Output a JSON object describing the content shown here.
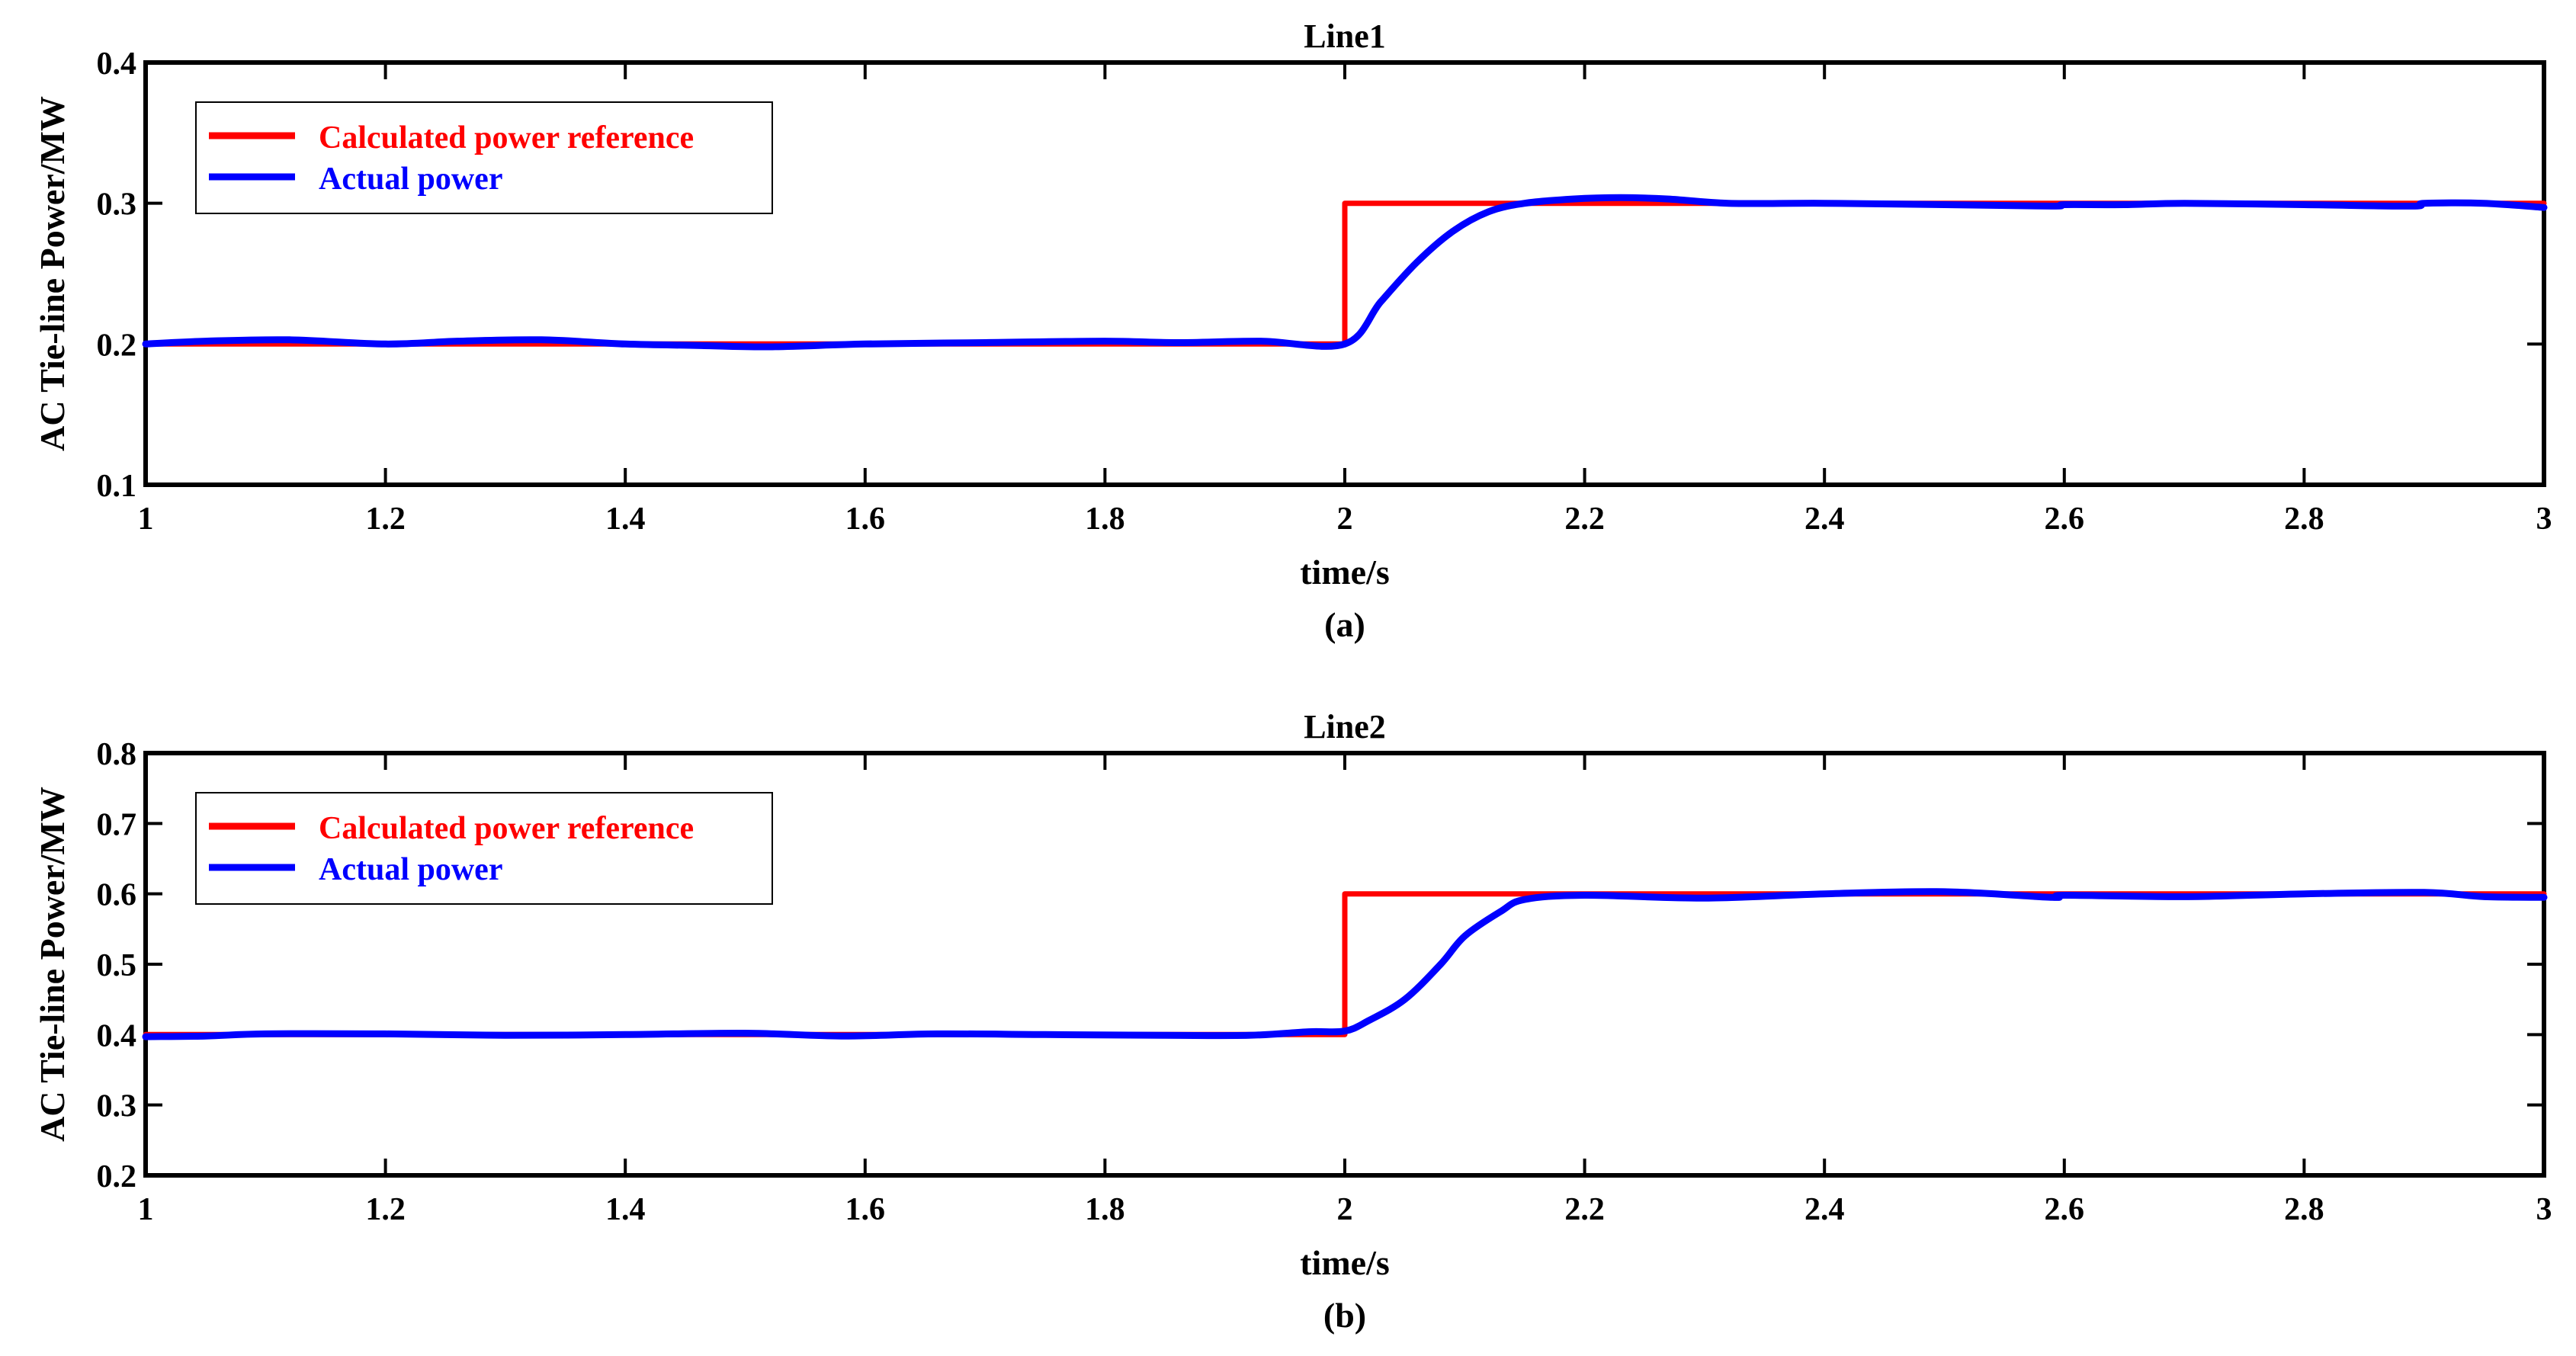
{
  "colors": {
    "reference": "#ff0000",
    "actual": "#0000ff",
    "axis": "#000000",
    "background": "#ffffff"
  },
  "chart_data": [
    {
      "type": "line",
      "title": "Line1",
      "xlabel": "time/s",
      "ylabel": "AC Tie-line Power/MW",
      "caption": "(a)",
      "xlim": [
        1,
        3
      ],
      "ylim": [
        0.1,
        0.4
      ],
      "xticks": [
        1,
        1.2,
        1.4,
        1.6,
        1.8,
        2,
        2.2,
        2.4,
        2.6,
        2.8,
        3
      ],
      "xtick_labels": [
        "1",
        "1.2",
        "1.4",
        "1.6",
        "1.8",
        "2",
        "2.2",
        "2.4",
        "2.6",
        "2.8",
        "3"
      ],
      "yticks": [
        0.1,
        0.2,
        0.3,
        0.4
      ],
      "ytick_labels": [
        "0.1",
        "0.2",
        "0.3",
        "0.4"
      ],
      "grid": false,
      "legend_position": "top-left",
      "series": [
        {
          "name": "Calculated power reference",
          "color": "#ff0000",
          "x": [
            1,
            2,
            2,
            3
          ],
          "y": [
            0.2,
            0.2,
            0.3,
            0.3
          ]
        },
        {
          "name": "Actual power",
          "color": "#0000ff",
          "x": [
            1,
            1.05,
            1.12,
            1.2,
            1.26,
            1.33,
            1.4,
            1.46,
            1.52,
            1.6,
            1.7,
            1.8,
            1.86,
            1.93,
            2,
            2.03,
            2.06,
            2.09,
            2.12,
            2.15,
            2.19,
            2.23,
            2.27,
            2.32,
            2.4,
            2.5,
            2.59,
            2.6,
            2.65,
            2.7,
            2.8,
            2.89,
            2.9,
            2.95,
            3
          ],
          "y": [
            0.2,
            0.202,
            0.203,
            0.2,
            0.202,
            0.203,
            0.2,
            0.199,
            0.198,
            0.2,
            0.201,
            0.202,
            0.201,
            0.202,
            0.2,
            0.23,
            0.258,
            0.28,
            0.294,
            0.3,
            0.303,
            0.304,
            0.303,
            0.3,
            0.3,
            0.299,
            0.298,
            0.299,
            0.299,
            0.3,
            0.299,
            0.298,
            0.3,
            0.3,
            0.297
          ]
        }
      ]
    },
    {
      "type": "line",
      "title": "Line2",
      "xlabel": "time/s",
      "ylabel": "AC Tie-line Power/MW",
      "caption": "(b)",
      "xlim": [
        1,
        3
      ],
      "ylim": [
        0.2,
        0.8
      ],
      "xticks": [
        1,
        1.2,
        1.4,
        1.6,
        1.8,
        2,
        2.2,
        2.4,
        2.6,
        2.8,
        3
      ],
      "xtick_labels": [
        "1",
        "1.2",
        "1.4",
        "1.6",
        "1.8",
        "2",
        "2.2",
        "2.4",
        "2.6",
        "2.8",
        "3"
      ],
      "yticks": [
        0.2,
        0.3,
        0.4,
        0.5,
        0.6,
        0.7,
        0.8
      ],
      "ytick_labels": [
        "0.2",
        "0.3",
        "0.4",
        "0.5",
        "0.6",
        "0.7",
        "0.8"
      ],
      "grid": false,
      "legend_position": "top-left",
      "series": [
        {
          "name": "Calculated power reference",
          "color": "#ff0000",
          "x": [
            1,
            2,
            2,
            3
          ],
          "y": [
            0.4,
            0.4,
            0.6,
            0.6
          ]
        },
        {
          "name": "Actual power",
          "color": "#0000ff",
          "x": [
            1,
            1.05,
            1.1,
            1.2,
            1.3,
            1.4,
            1.5,
            1.58,
            1.66,
            1.75,
            1.85,
            1.92,
            1.97,
            2,
            2.02,
            2.05,
            2.08,
            2.1,
            2.13,
            2.15,
            2.2,
            2.3,
            2.4,
            2.5,
            2.59,
            2.6,
            2.7,
            2.8,
            2.9,
            2.95,
            3
          ],
          "y": [
            0.397,
            0.398,
            0.401,
            0.401,
            0.399,
            0.4,
            0.402,
            0.398,
            0.401,
            0.4,
            0.399,
            0.399,
            0.404,
            0.405,
            0.42,
            0.45,
            0.5,
            0.54,
            0.575,
            0.592,
            0.598,
            0.594,
            0.6,
            0.603,
            0.595,
            0.598,
            0.596,
            0.6,
            0.602,
            0.596,
            0.595
          ]
        }
      ]
    }
  ]
}
